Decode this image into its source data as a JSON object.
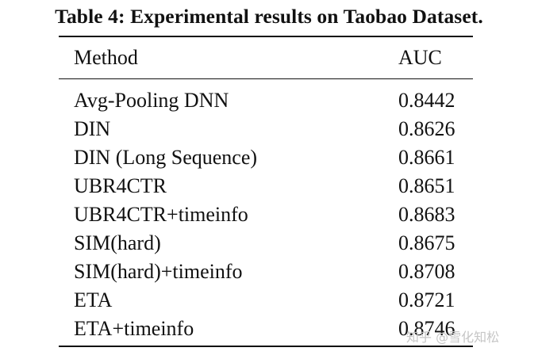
{
  "caption": "Table 4: Experimental results on Taobao Dataset.",
  "table": {
    "headers": [
      "Method",
      "AUC"
    ],
    "rows": [
      [
        "Avg-Pooling DNN",
        "0.8442"
      ],
      [
        "DIN",
        "0.8626"
      ],
      [
        "DIN (Long Sequence)",
        "0.8661"
      ],
      [
        "UBR4CTR",
        "0.8651"
      ],
      [
        "UBR4CTR+timeinfo",
        "0.8683"
      ],
      [
        "SIM(hard)",
        "0.8675"
      ],
      [
        "SIM(hard)+timeinfo",
        "0.8708"
      ],
      [
        "ETA",
        "0.8721"
      ],
      [
        "ETA+timeinfo",
        "0.8746"
      ]
    ]
  },
  "watermark": "知乎 @雪化知松"
}
